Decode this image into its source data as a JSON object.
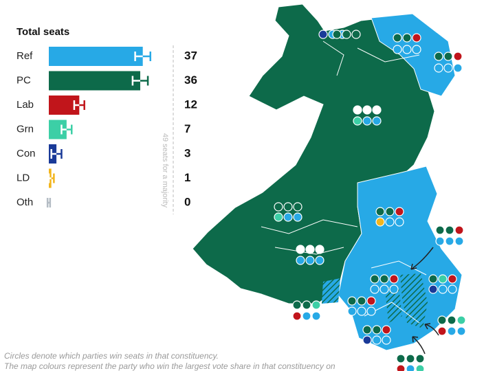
{
  "chart_data": {
    "type": "bar",
    "orientation": "horizontal",
    "title": "Total seats",
    "categories": [
      "Ref",
      "PC",
      "Lab",
      "Grn",
      "Con",
      "LD",
      "Oth"
    ],
    "values": [
      37,
      36,
      12,
      7,
      3,
      1,
      0
    ],
    "errors": [
      3,
      3,
      2,
      2,
      2,
      1,
      0.5
    ],
    "colors": [
      "#27a9e6",
      "#0d6a4a",
      "#c1151b",
      "#3ccfa6",
      "#1a3a98",
      "#f2b51c",
      "#b4bcc4"
    ],
    "xlim": [
      0,
      49
    ],
    "majority": {
      "value": 49,
      "label": "49 seats for a majority"
    },
    "notes": [
      "Circles denote which parties win seats in that constituency.",
      "The map colours represent the party who win the largest vote share in that constituency on"
    ]
  }
}
